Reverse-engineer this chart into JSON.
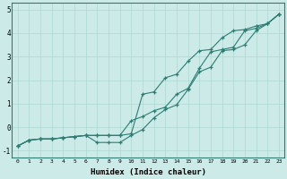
{
  "title": "",
  "xlabel": "Humidex (Indice chaleur)",
  "ylabel": "",
  "bg_color": "#cceae7",
  "line_color": "#2d7d74",
  "grid_color": "#aed8d3",
  "xlim": [
    -0.5,
    23.5
  ],
  "ylim": [
    -1.3,
    5.3
  ],
  "yticks": [
    -1,
    0,
    1,
    2,
    3,
    4,
    5
  ],
  "xticks": [
    0,
    1,
    2,
    3,
    4,
    5,
    6,
    7,
    8,
    9,
    10,
    11,
    12,
    13,
    14,
    15,
    16,
    17,
    18,
    19,
    20,
    21,
    22,
    23
  ],
  "line1_x": [
    0,
    1,
    2,
    3,
    4,
    5,
    6,
    7,
    8,
    9,
    10,
    11,
    12,
    13,
    14,
    15,
    16,
    17,
    18,
    19,
    20,
    21,
    22,
    23
  ],
  "line1_y": [
    -0.8,
    -0.55,
    -0.5,
    -0.5,
    -0.45,
    -0.4,
    -0.35,
    -0.35,
    -0.35,
    -0.35,
    -0.28,
    1.4,
    1.5,
    2.1,
    2.25,
    2.8,
    3.25,
    3.3,
    3.8,
    4.1,
    4.15,
    4.3,
    4.4,
    4.8
  ],
  "line2_x": [
    0,
    1,
    2,
    3,
    4,
    5,
    6,
    7,
    8,
    9,
    10,
    11,
    12,
    13,
    14,
    15,
    16,
    17,
    18,
    19,
    20,
    21,
    22,
    23
  ],
  "line2_y": [
    -0.8,
    -0.55,
    -0.5,
    -0.5,
    -0.45,
    -0.4,
    -0.35,
    -0.65,
    -0.65,
    -0.65,
    -0.35,
    -0.1,
    0.4,
    0.75,
    0.95,
    1.6,
    2.35,
    2.55,
    3.25,
    3.3,
    3.5,
    4.1,
    4.4,
    4.8
  ],
  "line3_x": [
    0,
    1,
    2,
    3,
    4,
    5,
    6,
    7,
    8,
    9,
    10,
    11,
    12,
    13,
    14,
    15,
    16,
    17,
    18,
    19,
    20,
    21,
    22,
    23
  ],
  "line3_y": [
    -0.8,
    -0.55,
    -0.5,
    -0.5,
    -0.45,
    -0.4,
    -0.35,
    -0.35,
    -0.35,
    -0.35,
    0.28,
    0.45,
    0.7,
    0.85,
    1.4,
    1.65,
    2.5,
    3.2,
    3.3,
    3.4,
    4.1,
    4.2,
    4.4,
    4.8
  ]
}
